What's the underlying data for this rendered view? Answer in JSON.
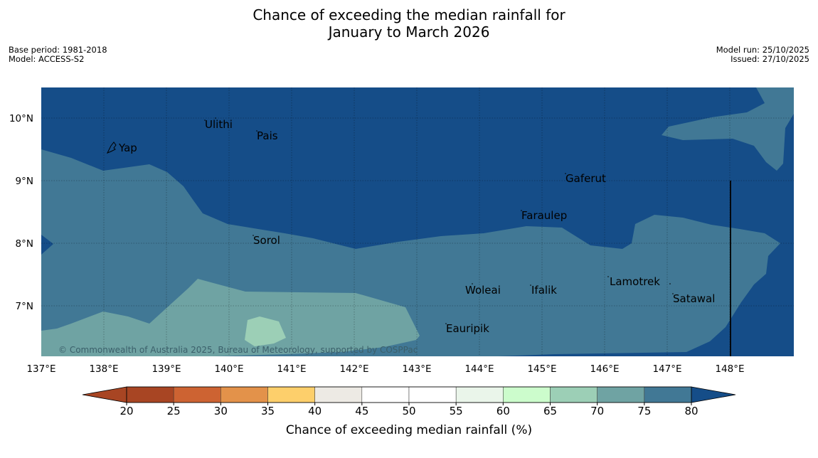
{
  "title": {
    "line1": "Chance of exceeding the median rainfall for",
    "line2": "January to March 2026"
  },
  "meta": {
    "base_period": "Base period: 1981-2018",
    "model": "Model: ACCESS-S2",
    "model_run": "Model run: 25/10/2025",
    "issued": "Issued: 27/10/2025"
  },
  "map": {
    "lon_labels": [
      "137°E",
      "138°E",
      "139°E",
      "140°E",
      "141°E",
      "142°E",
      "143°E",
      "144°E",
      "145°E",
      "146°E",
      "147°E",
      "148°E"
    ],
    "lat_labels": [
      "10°N",
      "9°N",
      "8°N",
      "7°N"
    ],
    "places": [
      {
        "name": "Yap"
      },
      {
        "name": "Ulithi"
      },
      {
        "name": "Pais"
      },
      {
        "name": "Gaferut"
      },
      {
        "name": "Faraulep"
      },
      {
        "name": "Sorol"
      },
      {
        "name": "Lamotrek"
      },
      {
        "name": "Woleai"
      },
      {
        "name": "Ifalik"
      },
      {
        "name": "Satawal"
      },
      {
        "name": "Eauripik"
      }
    ],
    "copyright": "© Commonwealth of Australia 2025, Bureau of Meteorology, supported by COSPPac"
  },
  "legend": {
    "ticks": [
      "20",
      "25",
      "30",
      "35",
      "40",
      "45",
      "50",
      "55",
      "60",
      "65",
      "70",
      "75",
      "80"
    ],
    "colors": [
      "#a84523",
      "#cd6332",
      "#e3924a",
      "#fdcf6b",
      "#edeae4",
      "#ffffff",
      "#ffffff",
      "#eaf5ea",
      "#ccfccc",
      "#9ccfb6",
      "#6fa3a3",
      "#417895"
    ],
    "under_color": "#a84523",
    "over_color": "#154d88",
    "label": "Chance of exceeding median rainfall (%)"
  }
}
